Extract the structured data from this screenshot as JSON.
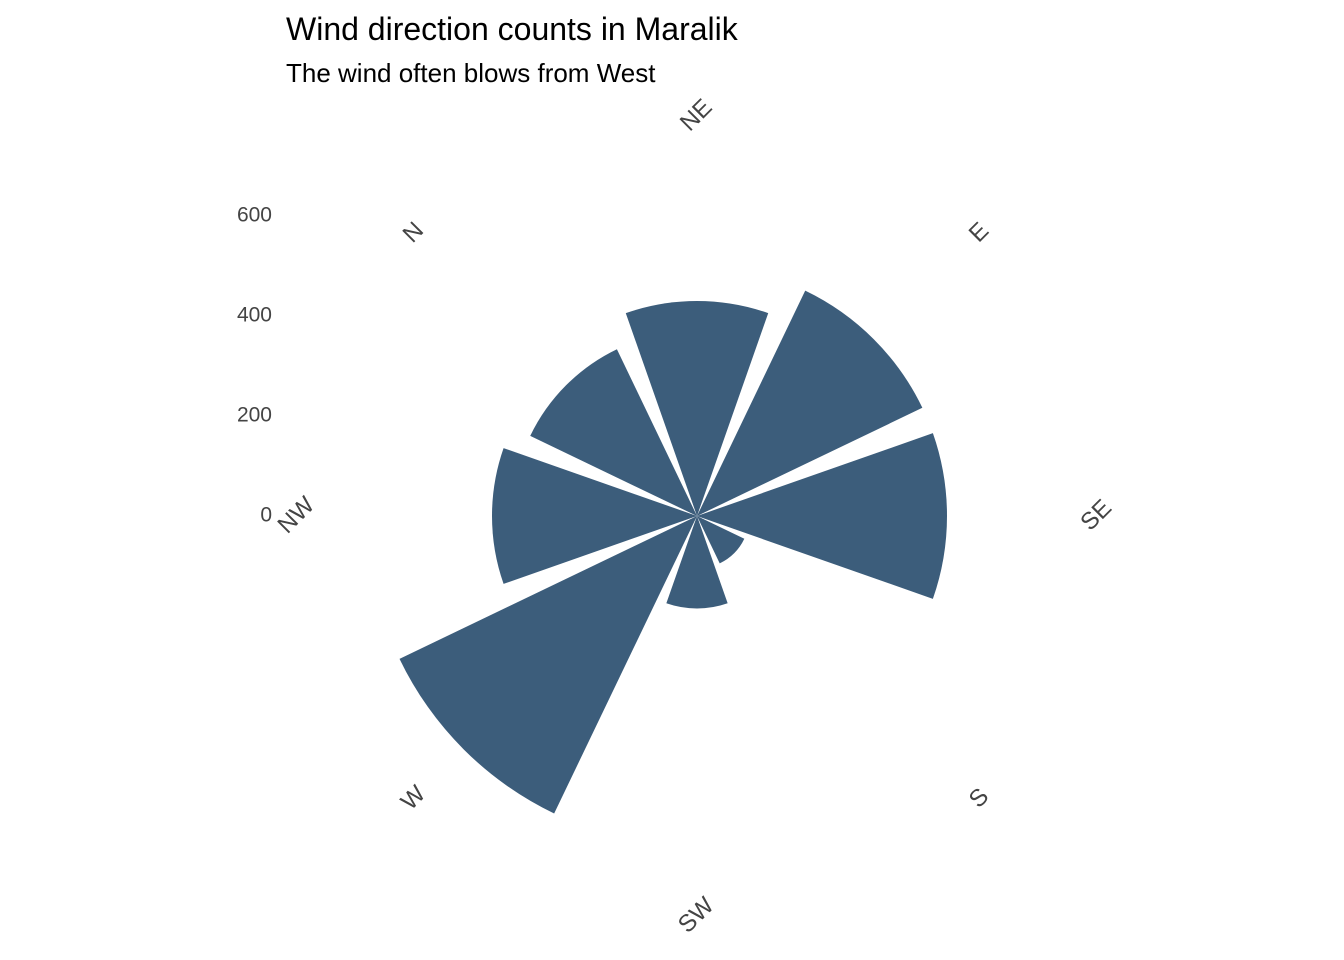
{
  "chart_data": {
    "type": "bar",
    "coord": "polar",
    "title": "Wind direction counts in Maralik",
    "subtitle": "The wind often blows from West",
    "categories": [
      "N",
      "NE",
      "E",
      "SE",
      "S",
      "SW",
      "W",
      "NW"
    ],
    "values": [
      370,
      430,
      500,
      500,
      105,
      185,
      660,
      410
    ],
    "y_ticks": [
      0,
      200,
      400,
      600
    ],
    "ylim": [
      0,
      700
    ],
    "bar_color": "#3C5D7B",
    "grid": false,
    "legend": "none"
  }
}
